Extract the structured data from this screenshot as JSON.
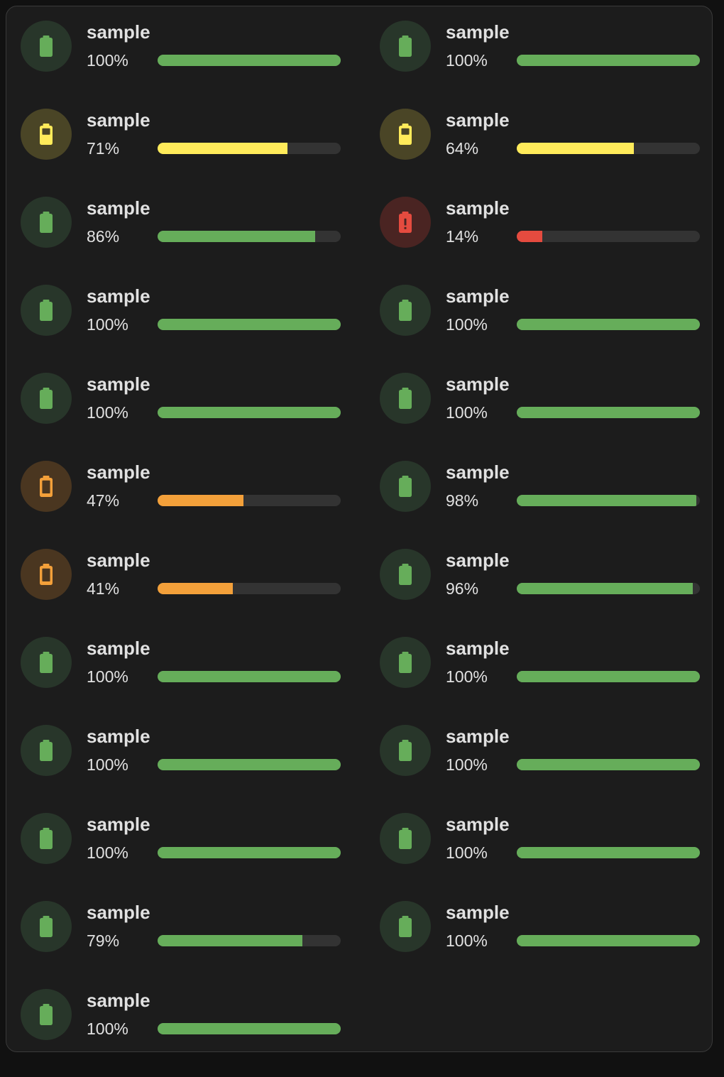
{
  "colors": {
    "green": "#66ad5a",
    "green_bg": "#28362a",
    "yellow": "#ffeb5a",
    "yellow_bg": "#4a4526",
    "orange": "#f3a03a",
    "orange_bg": "#4a3620",
    "red": "#e54b3f",
    "red_bg": "#4a2422"
  },
  "entities": [
    {
      "name": "sample",
      "state": "100%",
      "level": 100,
      "status": "green",
      "icon": "battery-full-icon"
    },
    {
      "name": "sample",
      "state": "100%",
      "level": 100,
      "status": "green",
      "icon": "battery-full-icon"
    },
    {
      "name": "sample",
      "state": "71%",
      "level": 71,
      "status": "yellow",
      "icon": "battery-medium-icon"
    },
    {
      "name": "sample",
      "state": "64%",
      "level": 64,
      "status": "yellow",
      "icon": "battery-medium-icon"
    },
    {
      "name": "sample",
      "state": "86%",
      "level": 86,
      "status": "green",
      "icon": "battery-full-icon"
    },
    {
      "name": "sample",
      "state": "14%",
      "level": 14,
      "status": "red",
      "icon": "battery-alert-icon"
    },
    {
      "name": "sample",
      "state": "100%",
      "level": 100,
      "status": "green",
      "icon": "battery-full-icon"
    },
    {
      "name": "sample",
      "state": "100%",
      "level": 100,
      "status": "green",
      "icon": "battery-full-icon"
    },
    {
      "name": "sample",
      "state": "100%",
      "level": 100,
      "status": "green",
      "icon": "battery-full-icon"
    },
    {
      "name": "sample",
      "state": "100%",
      "level": 100,
      "status": "green",
      "icon": "battery-full-icon"
    },
    {
      "name": "sample",
      "state": "47%",
      "level": 47,
      "status": "orange",
      "icon": "battery-low-icon"
    },
    {
      "name": "sample",
      "state": "98%",
      "level": 98,
      "status": "green",
      "icon": "battery-full-icon"
    },
    {
      "name": "sample",
      "state": "41%",
      "level": 41,
      "status": "orange",
      "icon": "battery-low-icon"
    },
    {
      "name": "sample",
      "state": "96%",
      "level": 96,
      "status": "green",
      "icon": "battery-full-icon"
    },
    {
      "name": "sample",
      "state": "100%",
      "level": 100,
      "status": "green",
      "icon": "battery-full-icon"
    },
    {
      "name": "sample",
      "state": "100%",
      "level": 100,
      "status": "green",
      "icon": "battery-full-icon"
    },
    {
      "name": "sample",
      "state": "100%",
      "level": 100,
      "status": "green",
      "icon": "battery-full-icon"
    },
    {
      "name": "sample",
      "state": "100%",
      "level": 100,
      "status": "green",
      "icon": "battery-full-icon"
    },
    {
      "name": "sample",
      "state": "100%",
      "level": 100,
      "status": "green",
      "icon": "battery-full-icon"
    },
    {
      "name": "sample",
      "state": "100%",
      "level": 100,
      "status": "green",
      "icon": "battery-full-icon"
    },
    {
      "name": "sample",
      "state": "79%",
      "level": 79,
      "status": "green",
      "icon": "battery-full-icon"
    },
    {
      "name": "sample",
      "state": "100%",
      "level": 100,
      "status": "green",
      "icon": "battery-full-icon"
    },
    {
      "name": "sample",
      "state": "100%",
      "level": 100,
      "status": "green",
      "icon": "battery-full-icon"
    }
  ]
}
